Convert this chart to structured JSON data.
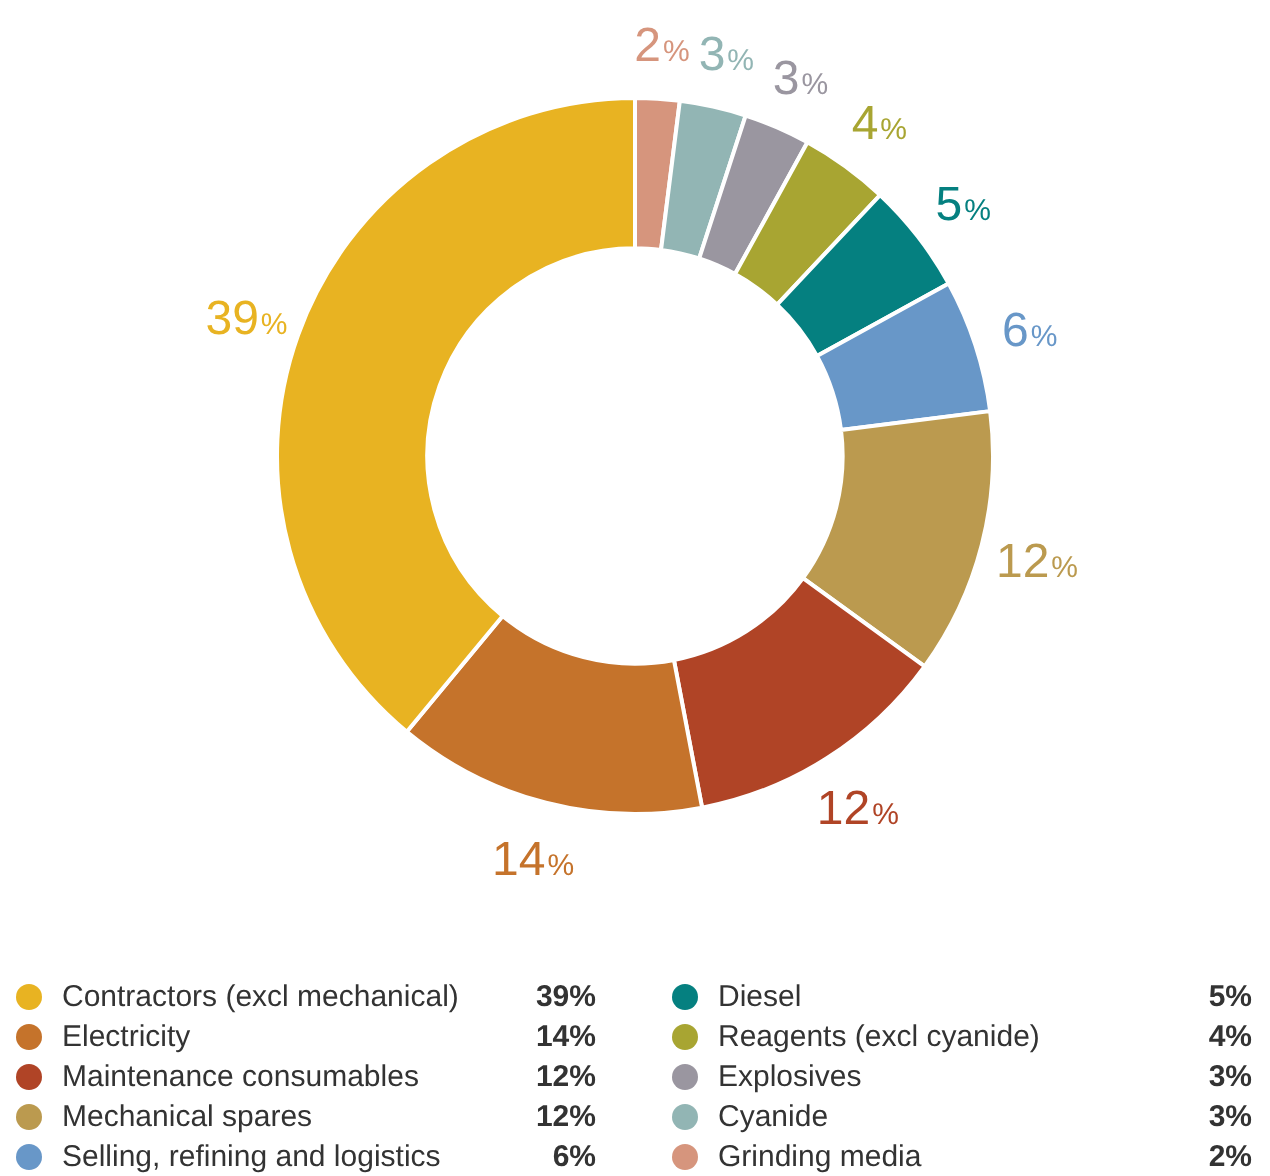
{
  "chart_data": {
    "type": "donut",
    "categories": [
      "Contractors (excl mechanical)",
      "Electricity",
      "Maintenance consumables",
      "Mechanical spares",
      "Selling, refining and logistics",
      "Diesel",
      "Reagents (excl cyanide)",
      "Explosives",
      "Cyanide",
      "Grinding media"
    ],
    "values": [
      39,
      14,
      12,
      12,
      6,
      5,
      4,
      3,
      3,
      2
    ],
    "colors": [
      "#e8b322",
      "#c5732b",
      "#b04426",
      "#bb9a4f",
      "#6897c8",
      "#058080",
      "#a8a532",
      "#9a96a0",
      "#92b5b4",
      "#d6957d"
    ],
    "value_labels": [
      "39%",
      "14%",
      "12%",
      "12%",
      "6%",
      "5%",
      "4%",
      "3%",
      "3%",
      "2%"
    ],
    "legend": "bottom"
  }
}
